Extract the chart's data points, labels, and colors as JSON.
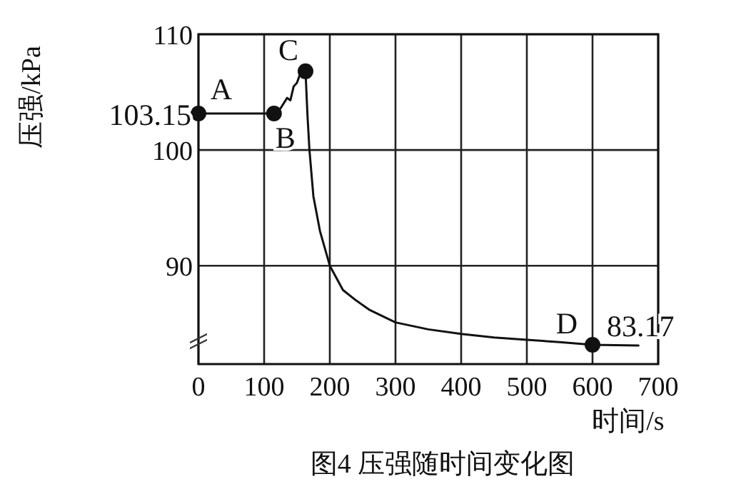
{
  "chart_data": {
    "type": "line",
    "title": "图4 压强随时间变化图",
    "xlabel": "时间/s",
    "ylabel": "压强/kPa",
    "xlim": [
      0,
      700
    ],
    "xticks": [
      0,
      100,
      200,
      300,
      400,
      500,
      600,
      700
    ],
    "ylim": [
      81.5,
      110
    ],
    "yticks": [
      90,
      100,
      110
    ],
    "grid": true,
    "series": [
      {
        "color": "#111111",
        "marker": "none",
        "x": [
          0,
          115,
          125,
          135,
          140,
          145,
          150,
          155,
          163,
          166,
          169,
          175,
          185,
          200,
          220,
          240,
          260,
          300,
          350,
          400,
          450,
          500,
          550,
          600,
          670
        ],
        "values": [
          103.15,
          103.15,
          103.6,
          104.5,
          104.3,
          105.5,
          105.8,
          106.6,
          106.8,
          103,
          100,
          96,
          93,
          90,
          87.9,
          87,
          86.2,
          85.1,
          84.5,
          84.1,
          83.8,
          83.6,
          83.4,
          83.17,
          83.1
        ]
      },
      {
        "type": "scatter",
        "color": "#111111",
        "marker": "circle",
        "x": [
          0,
          115,
          163,
          600
        ],
        "values": [
          103.15,
          103.15,
          106.8,
          83.17
        ]
      }
    ],
    "annotations": [
      {
        "text": "A",
        "x": 0,
        "y": 103.15
      },
      {
        "text": "B",
        "x": 115,
        "y": 103.15
      },
      {
        "text": "C",
        "x": 163,
        "y": 106.8
      },
      {
        "text": "D",
        "x": 600,
        "y": 83.17
      },
      {
        "text": "103.15",
        "x": 0,
        "y": 103.15
      },
      {
        "text": "83.17",
        "x": 600,
        "y": 83.17
      }
    ]
  }
}
